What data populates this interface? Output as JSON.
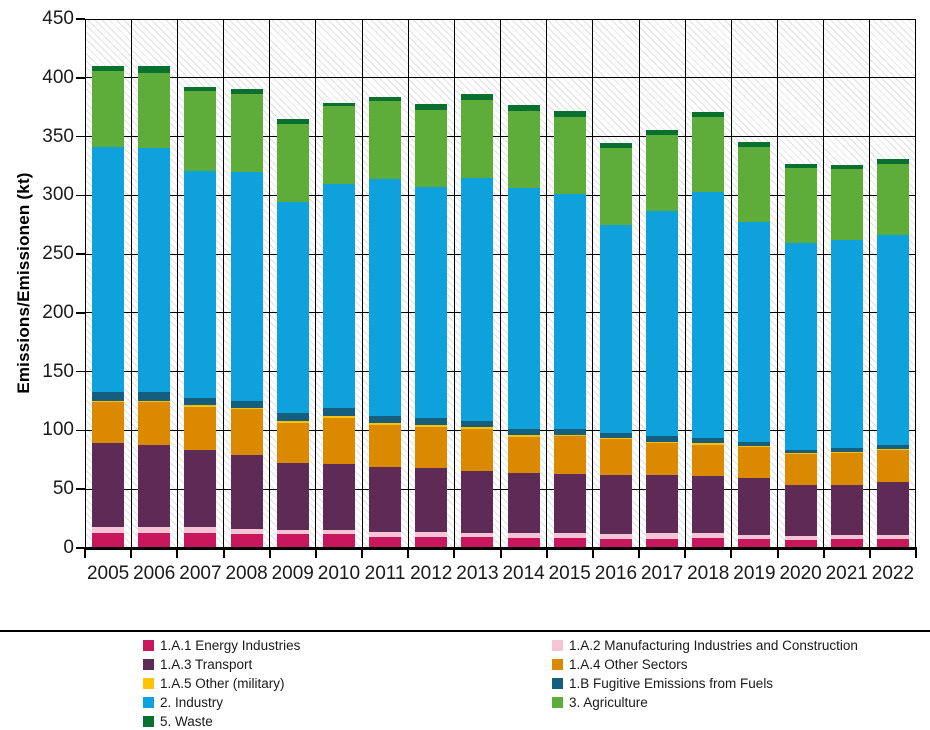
{
  "chart_data": {
    "type": "bar",
    "stacked": true,
    "title": "",
    "ylabel": "Emissions/Emissionen (kt)",
    "xlabel": "",
    "ylim": [
      0,
      450
    ],
    "ytick_step": 50,
    "grid": true,
    "background_hatch": true,
    "legend_position": "bottom",
    "categories": [
      "2005",
      "2006",
      "2007",
      "2008",
      "2009",
      "2010",
      "2011",
      "2012",
      "2013",
      "2014",
      "2015",
      "2016",
      "2017",
      "2018",
      "2019",
      "2020",
      "2021",
      "2022"
    ],
    "series": [
      {
        "name": "1.A.1 Energy Industries",
        "color": "#C8175D",
        "values": [
          13,
          13,
          13,
          12,
          11.5,
          11.5,
          9.5,
          9.5,
          9,
          8.5,
          8.5,
          8,
          8,
          8.5,
          8,
          7,
          7.5,
          7.5
        ]
      },
      {
        "name": "1.A.2 Manufacturing Industries and Construction",
        "color": "#F6C5D5",
        "values": [
          4.5,
          4.5,
          5,
          4.5,
          4,
          4,
          4,
          4,
          4,
          4,
          4,
          4,
          4.5,
          4.5,
          3.5,
          3.5,
          3.5,
          4
        ]
      },
      {
        "name": "1.A.3 Transport",
        "color": "#5E2B57",
        "values": [
          71.5,
          70.5,
          65,
          62.5,
          56.5,
          56,
          55.5,
          54.5,
          52.5,
          51,
          50.5,
          50.5,
          49.5,
          48,
          48,
          43,
          43,
          44.5
        ]
      },
      {
        "name": "1.A.4 Other Sectors",
        "color": "#DB8A00",
        "values": [
          35,
          36,
          37,
          39,
          34.5,
          39.5,
          35.5,
          35,
          36,
          31,
          32.5,
          30.5,
          27,
          27,
          26.5,
          26.5,
          27,
          27.5
        ]
      },
      {
        "name": "1.A.5 Other (military)",
        "color": "#FDC300",
        "values": [
          1.5,
          1.5,
          1.5,
          1.5,
          1.5,
          1.5,
          1.5,
          1.5,
          1.5,
          1.5,
          1,
          1,
          1.5,
          1.5,
          1,
          1,
          1,
          1
        ]
      },
      {
        "name": "1.B Fugitive Emissions from Fuels",
        "color": "#155E7D",
        "values": [
          7.5,
          7,
          6.5,
          6,
          7,
          7,
          6.5,
          6.5,
          5.5,
          5.5,
          4.5,
          4,
          5,
          4,
          3.5,
          2.5,
          3.5,
          3
        ]
      },
      {
        "name": "2. Industry",
        "color": "#0FA1DC",
        "values": [
          208,
          208,
          193,
          194,
          179,
          190,
          201.5,
          196.5,
          206.5,
          204.5,
          200,
          176.5,
          191.5,
          209.5,
          187,
          176,
          176.5,
          179
        ]
      },
      {
        "name": "3. Agriculture",
        "color": "#5EAD3A",
        "values": [
          65,
          63.5,
          68,
          67,
          66.5,
          66.5,
          66,
          65.5,
          66.5,
          66,
          65.5,
          66,
          64.5,
          63.5,
          64,
          63.5,
          60.5,
          60.5
        ]
      },
      {
        "name": "5. Waste",
        "color": "#0A7030",
        "values": [
          4.5,
          6,
          3,
          4,
          4.5,
          3,
          4,
          4.5,
          4.5,
          4.5,
          5,
          4.5,
          4.5,
          4.5,
          4,
          3.5,
          3.5,
          4
        ]
      }
    ],
    "legend_columns": [
      [
        0,
        2,
        4,
        6,
        8
      ],
      [
        1,
        3,
        5,
        7
      ]
    ]
  }
}
